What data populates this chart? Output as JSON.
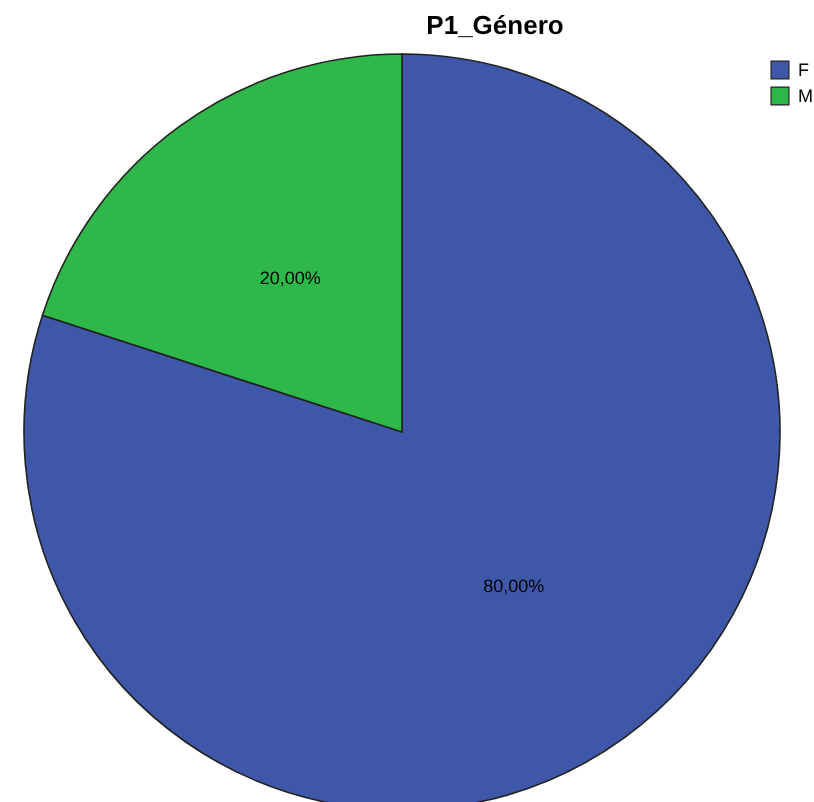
{
  "chart_data": {
    "type": "pie",
    "title": "P1_Género",
    "categories": [
      "F",
      "M"
    ],
    "values": [
      80,
      20
    ],
    "colors": [
      "#3f57a8",
      "#2fb84a"
    ],
    "value_labels": [
      "80,00%",
      "20,00%"
    ],
    "legend": "top right"
  }
}
